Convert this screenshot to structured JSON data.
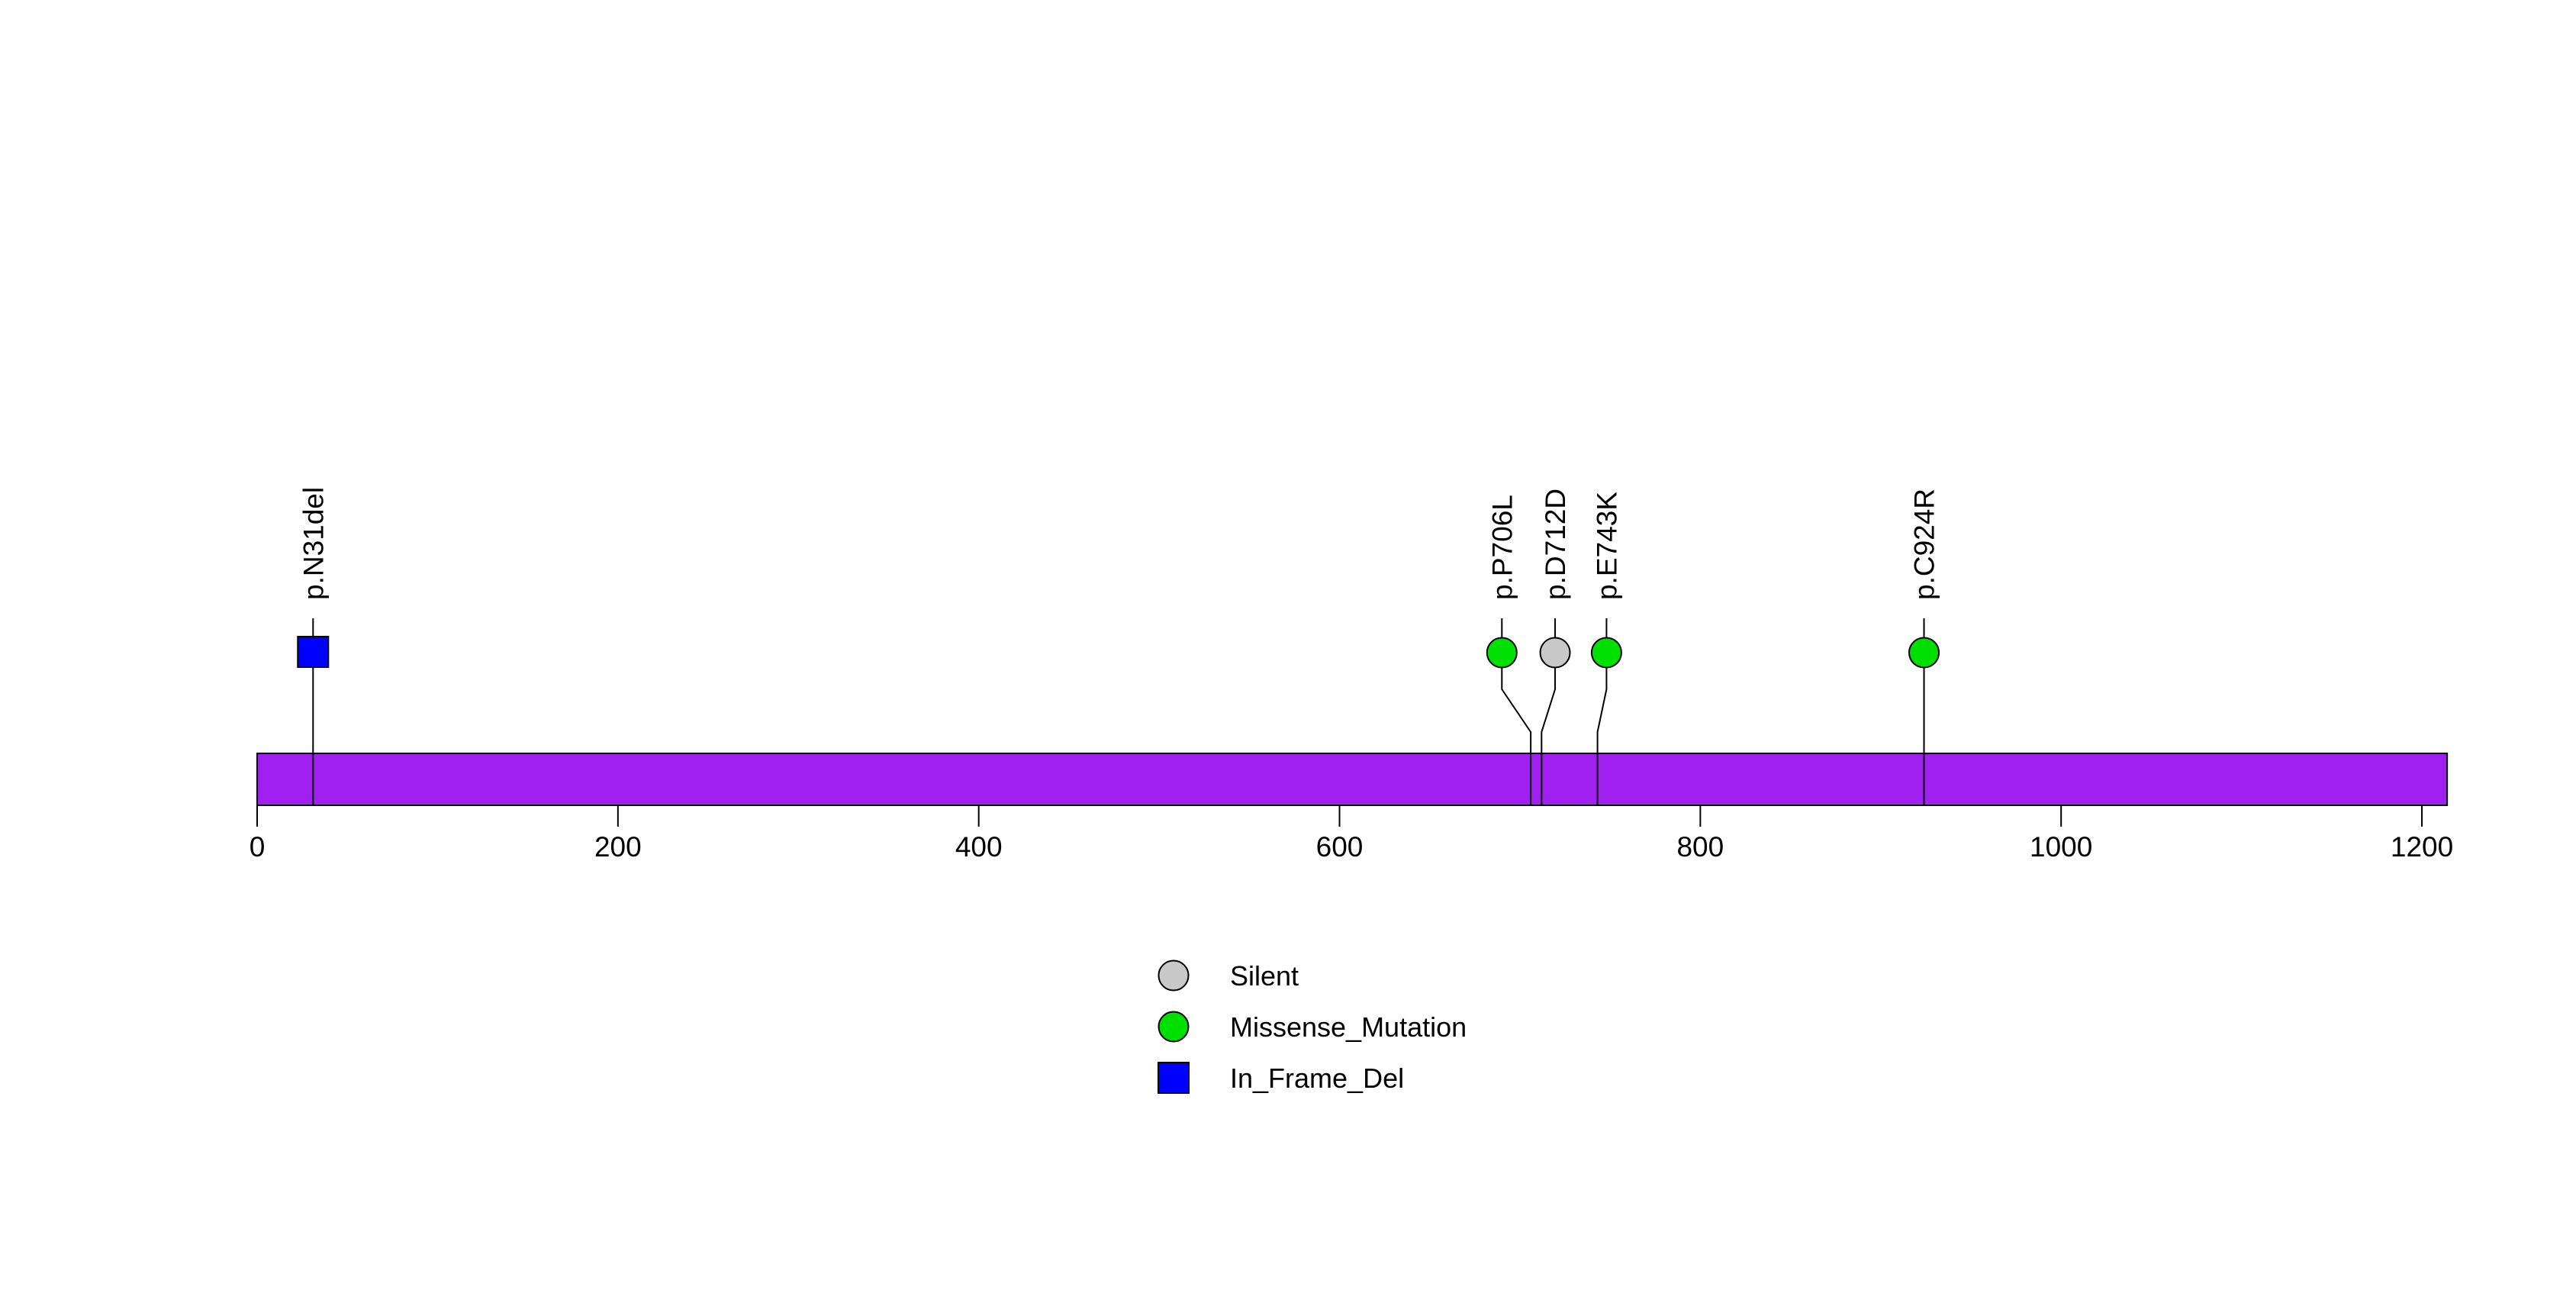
{
  "figure": {
    "background_color": "#FFFFFF",
    "title": ""
  },
  "chart_data": {
    "type": "lollipop",
    "title": "",
    "xlabel": "",
    "ylabel": "",
    "grid": false,
    "x_ticks": [
      0,
      200,
      400,
      600,
      800,
      1000,
      1200
    ],
    "xlim": [
      0,
      1214
    ],
    "protein": {
      "start_aa": 0,
      "end_aa": 1214,
      "bar_color": "#A020F0",
      "bar_border_color": "#000000"
    },
    "mutations": [
      {
        "label": "p.N31del",
        "position": 31,
        "label_position": 31,
        "type": "In_Frame_Del",
        "shape": "square",
        "color": "#0000FF"
      },
      {
        "label": "p.P706L",
        "position": 706,
        "label_position": 690,
        "type": "Missense_Mutation",
        "shape": "circle",
        "color": "#00E000"
      },
      {
        "label": "p.D712D",
        "position": 712,
        "label_position": 719.5,
        "type": "Silent",
        "shape": "circle",
        "color": "#C8C8C8"
      },
      {
        "label": "p.E743K",
        "position": 743,
        "label_position": 748,
        "type": "Missense_Mutation",
        "shape": "circle",
        "color": "#00E000"
      },
      {
        "label": "p.C924R",
        "position": 924,
        "label_position": 924,
        "type": "Missense_Mutation",
        "shape": "circle",
        "color": "#00E000"
      }
    ],
    "legend": {
      "position": "bottom-center",
      "items": [
        {
          "label": "Silent",
          "shape": "circle",
          "color": "#C8C8C8"
        },
        {
          "label": "Missense_Mutation",
          "shape": "circle",
          "color": "#00E000"
        },
        {
          "label": "In_Frame_Del",
          "shape": "square",
          "color": "#0000FF"
        }
      ]
    },
    "stem_color": "#000000",
    "marker_border_color": "#000000"
  }
}
